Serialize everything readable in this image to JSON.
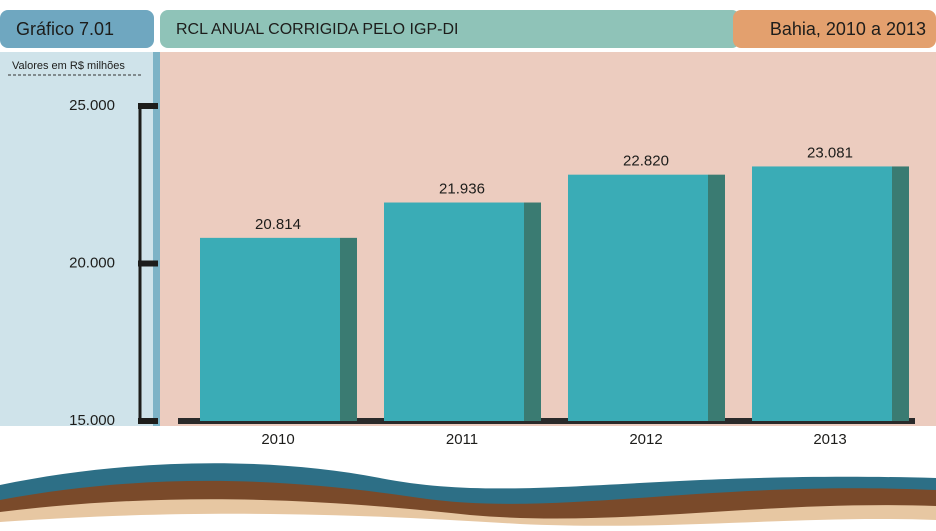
{
  "chart_data": {
    "type": "bar",
    "figure_label": "Gráfico 7.01",
    "title": "RCL ANUAL CORRIGIDA PELO IGP-DI",
    "subtitle": "Bahia, 2010 a 2013",
    "y_label": "Valores em R$ milhões",
    "categories": [
      "2010",
      "2011",
      "2012",
      "2013"
    ],
    "values": [
      20814,
      21936,
      22820,
      23081
    ],
    "value_labels": [
      "20.814",
      "21.936",
      "22.820",
      "23.081"
    ],
    "color": "#3aacb6",
    "ylim": [
      15000,
      25000
    ],
    "yticks": [
      {
        "value": 15000,
        "label": "15.000"
      },
      {
        "value": 20000,
        "label": "20.000"
      },
      {
        "value": 25000,
        "label": "25.000"
      }
    ]
  }
}
